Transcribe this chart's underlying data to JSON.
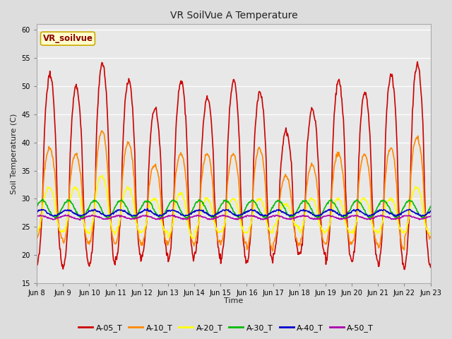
{
  "title": "VR SoilVue A Temperature",
  "ylabel": "Soil Temperature (C)",
  "xlabel": "Time",
  "ylim": [
    15,
    61
  ],
  "yticks": [
    15,
    20,
    25,
    30,
    35,
    40,
    45,
    50,
    55,
    60
  ],
  "fig_bg": "#dddddd",
  "plot_bg": "#e8e8e8",
  "legend_label": "VR_soilvue",
  "series_colors": [
    "#cc0000",
    "#ff8800",
    "#ffff00",
    "#00bb00",
    "#0000cc",
    "#aa00aa"
  ],
  "series_names": [
    "A-05_T",
    "A-10_T",
    "A-20_T",
    "A-30_T",
    "A-40_T",
    "A-50_T"
  ],
  "xtick_labels": [
    "Jun 8",
    "Jun 9",
    "Jun 10",
    "Jun 11",
    "Jun 12",
    "Jun 13",
    "Jun 14",
    "Jun 15",
    "Jun 16",
    "Jun 17",
    "Jun 18",
    "Jun 19",
    "Jun 20",
    "Jun 21",
    "Jun 22",
    "Jun 23"
  ],
  "n_days": 15,
  "pts_per_day": 48,
  "a05_day_base": [
    35,
    34,
    36,
    35,
    33,
    35,
    34,
    35,
    34,
    31,
    33,
    35,
    34,
    35,
    36
  ],
  "a05_day_amp": [
    17,
    16,
    18,
    16,
    13,
    16,
    14,
    16,
    15,
    11,
    13,
    16,
    15,
    17,
    18
  ],
  "a10_day_base": [
    31,
    30,
    32,
    31,
    29,
    30,
    30,
    30,
    30,
    28,
    29,
    30,
    30,
    30,
    32
  ],
  "a10_day_amp": [
    8,
    8,
    10,
    9,
    7,
    8,
    8,
    8,
    9,
    6,
    7,
    8,
    8,
    9,
    9
  ],
  "a20_day_base": [
    28,
    28,
    29,
    28,
    27,
    27,
    27,
    27,
    27,
    27,
    27,
    27,
    27,
    27,
    28
  ],
  "a20_day_amp": [
    4,
    4,
    5,
    4,
    3,
    4,
    3,
    3,
    3,
    2,
    3,
    3,
    3,
    3,
    4
  ],
  "a30_base": 28.2,
  "a30_amp": 1.5,
  "a40_base": 27.5,
  "a40_amp": 0.5,
  "a50_base": 26.7,
  "a50_amp": 0.3,
  "lw": 1.2,
  "title_fontsize": 10,
  "axis_label_fontsize": 8,
  "tick_fontsize": 7,
  "legend_fontsize": 8
}
